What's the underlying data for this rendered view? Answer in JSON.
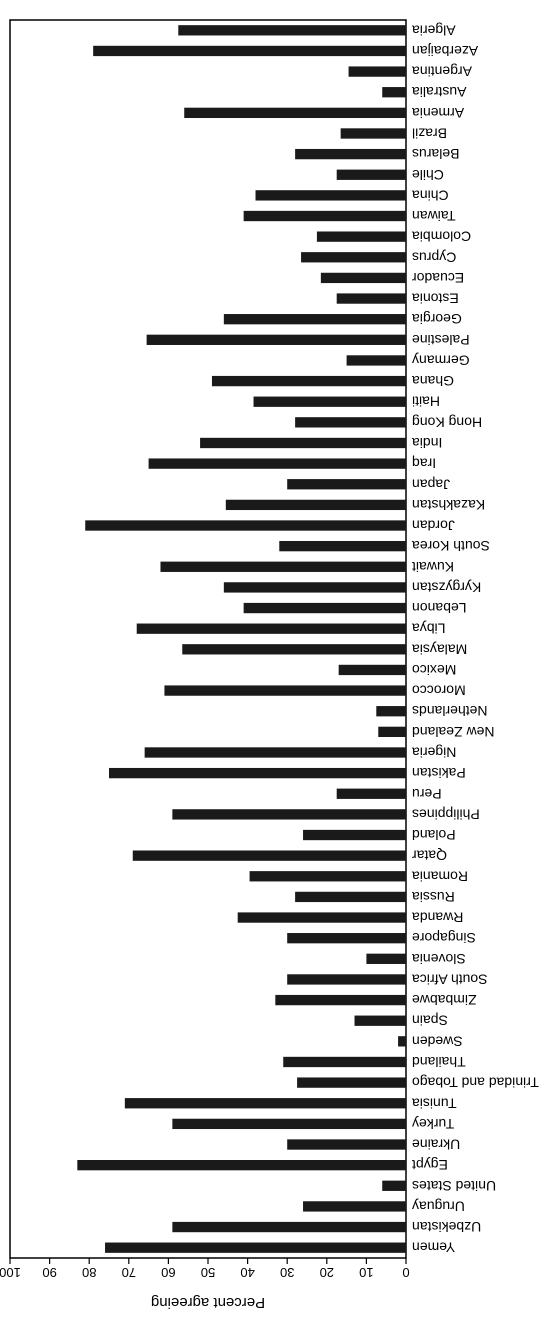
{
  "chart_data": {
    "type": "bar",
    "orientation": "horizontal",
    "rendered_rotation_degrees": 180,
    "categories": [
      "Algeria",
      "Azerbaijan",
      "Argentina",
      "Australia",
      "Armenia",
      "Brazil",
      "Belarus",
      "Chile",
      "China",
      "Taiwan",
      "Colombia",
      "Cyprus",
      "Ecuador",
      "Estonia",
      "Georgia",
      "Palestine",
      "Germany",
      "Ghana",
      "Haiti",
      "Hong Kong",
      "India",
      "Iraq",
      "Japan",
      "Kazakhstan",
      "Jordan",
      "South Korea",
      "Kuwait",
      "Kyrgyzstan",
      "Lebanon",
      "Libya",
      "Malaysia",
      "Mexico",
      "Morocco",
      "Netherlands",
      "New Zealand",
      "Nigeria",
      "Pakistan",
      "Peru",
      "Philippines",
      "Poland",
      "Qatar",
      "Romania",
      "Russia",
      "Rwanda",
      "Singapore",
      "Slovenia",
      "South Africa",
      "Zimbabwe",
      "Spain",
      "Sweden",
      "Thailand",
      "Trinidad and Tobago",
      "Tunisia",
      "Turkey",
      "Ukraine",
      "Egypt",
      "United States",
      "Uruguay",
      "Uzbekistan",
      "Yemen"
    ],
    "values": [
      57.5,
      79,
      14.5,
      6,
      56,
      16.5,
      28,
      17.5,
      38,
      41,
      22.5,
      26.5,
      21.5,
      17.5,
      46,
      65.5,
      15,
      49,
      38.5,
      28,
      52,
      65,
      30,
      45.5,
      81,
      32,
      62,
      46,
      41,
      68,
      56.5,
      17,
      61,
      7.5,
      7,
      66,
      75,
      17.5,
      59,
      26,
      69,
      39.5,
      28,
      42.5,
      30,
      10,
      30,
      33,
      13,
      2,
      31,
      27.5,
      71,
      59,
      30,
      83,
      6,
      26,
      59,
      76
    ],
    "title": "",
    "xlabel": "Percent agreeing",
    "ylabel": "",
    "xlim": [
      0,
      100
    ],
    "x_ticks": [
      "0",
      "10",
      "20",
      "30",
      "40",
      "50",
      "60",
      "70",
      "80",
      "90",
      "100"
    ],
    "bar_color": "#1a1a1a",
    "grid": false,
    "legend": "none"
  }
}
